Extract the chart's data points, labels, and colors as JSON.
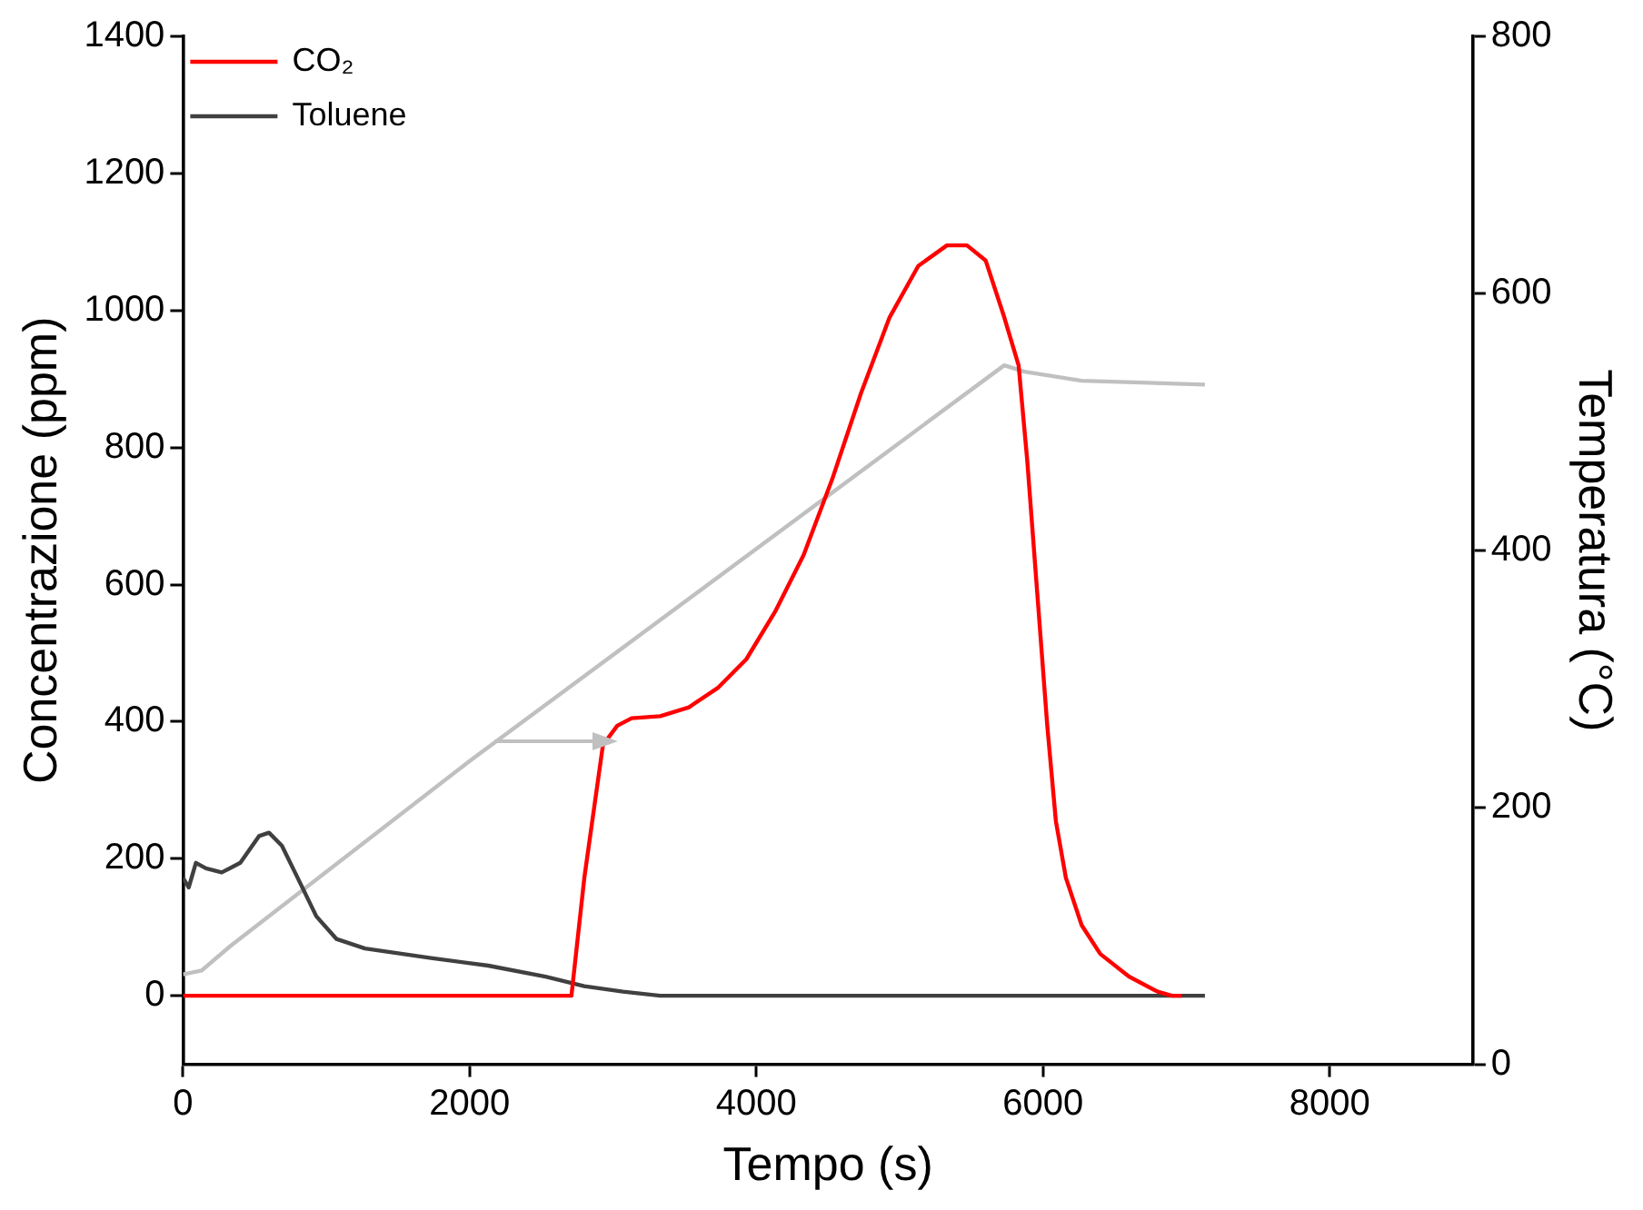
{
  "chart_data": {
    "type": "line",
    "xlabel": "Tempo (s)",
    "ylabel": "Concentrazione (ppm)",
    "y2label": "Temperatura (°C)",
    "xlim": [
      0,
      9000
    ],
    "xticks": [
      0,
      2000,
      4000,
      6000,
      8000
    ],
    "ylim": [
      -100,
      1400
    ],
    "yticks": [
      0,
      200,
      400,
      600,
      800,
      1000,
      1200,
      1400
    ],
    "y2lim": [
      0,
      800
    ],
    "y2ticks": [
      0,
      200,
      400,
      600,
      800
    ],
    "grid": false,
    "legend": "top left",
    "marker": "none",
    "line_style": "solid",
    "series": [
      {
        "name": "CO₂",
        "color": "#ff0000",
        "x": [
          0,
          2710,
          2800,
          2930,
          3030,
          3130,
          3330,
          3530,
          3730,
          3930,
          4130,
          4330,
          4530,
          4730,
          4930,
          5130,
          5330,
          5470,
          5600,
          5730,
          5830,
          5890,
          5960,
          6030,
          6090,
          6160,
          6270,
          6400,
          6600,
          6800,
          6900,
          6970
        ],
        "values": [
          0,
          0,
          172,
          366,
          394,
          405,
          408,
          421,
          449,
          491,
          560,
          643,
          754,
          879,
          990,
          1065,
          1095,
          1095,
          1073,
          990,
          920,
          782,
          588,
          394,
          255,
          172,
          103,
          61,
          28,
          6,
          0,
          0
        ]
      },
      {
        "name": "Toluene",
        "color": "#404040",
        "x": [
          0,
          40,
          90,
          160,
          270,
          400,
          530,
          600,
          690,
          800,
          930,
          1070,
          1270,
          1730,
          2130,
          2530,
          2800,
          3070,
          3330,
          7130
        ],
        "values": [
          172,
          158,
          194,
          186,
          180,
          194,
          233,
          238,
          219,
          172,
          116,
          83,
          69,
          55,
          44,
          28,
          14,
          6,
          0,
          0
        ]
      },
      {
        "color": "#c0c0c0",
        "axis": "y2",
        "x": [
          0,
          130,
          330,
          2000,
          5730,
          5870,
          6270,
          7130
        ],
        "values": [
          70,
          73,
          92,
          236,
          544,
          539,
          532,
          529
        ]
      }
    ]
  }
}
